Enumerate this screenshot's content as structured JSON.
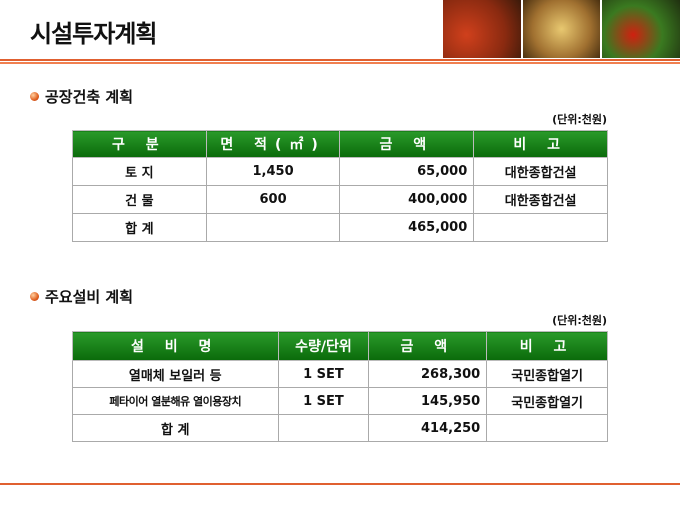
{
  "title": "시설투자계획",
  "section1": {
    "heading": "공장건축 계획",
    "unit": "(단위:천원)",
    "headers": [
      "구 분",
      "면 적(㎡)",
      "금 액",
      "비 고"
    ],
    "rows": [
      [
        "토 지",
        "1,450",
        "65,000",
        "대한종합건설"
      ],
      [
        "건 물",
        "600",
        "400,000",
        "대한종합건설"
      ],
      [
        "합 계",
        "",
        "465,000",
        ""
      ]
    ]
  },
  "section2": {
    "heading": "주요설비 계획",
    "unit": "(단위:천원)",
    "headers": [
      "설 비 명",
      "수량/단위",
      "금 액",
      "비 고"
    ],
    "rows": [
      [
        "열매체 보일러 등",
        "1 SET",
        "268,300",
        "국민종합열기"
      ],
      [
        "페타이어 열분해유 열이용장치",
        "1 SET",
        "145,950",
        "국민종합열기"
      ],
      [
        "합 계",
        "",
        "414,250",
        ""
      ]
    ]
  },
  "colors": {
    "header_green": "#138a13",
    "accent_orange": "#e06030"
  }
}
